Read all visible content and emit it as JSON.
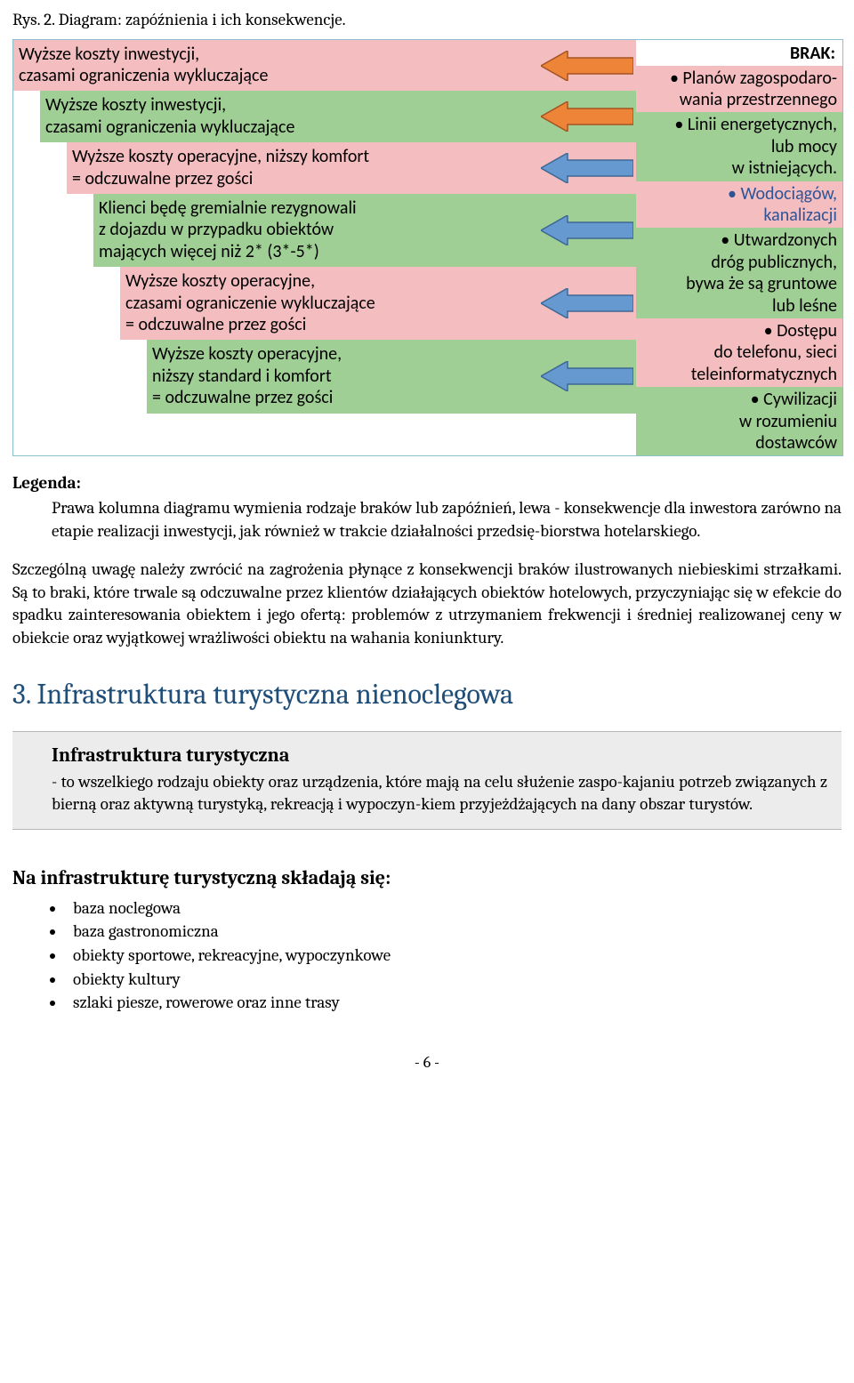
{
  "caption": "Rys. 2. Diagram: zapóźnienia i ich konsekwencje.",
  "colors": {
    "pink": "#f4bdc0",
    "green": "#a0cf95",
    "arrow_orange_fill": "#ee8437",
    "arrow_orange_stroke": "#a45523",
    "arrow_blue_fill": "#6699d0",
    "arrow_blue_stroke": "#3e6895",
    "heading_blue": "#1f4e79",
    "box_gray": "#ececec",
    "blue_text": "#2f5496"
  },
  "diagram": {
    "brak_label": "BRAK:",
    "left_rows": [
      {
        "indent": 0,
        "bg": "pink",
        "arrow": "orange",
        "text": "Wyższe koszty inwestycji,\nczasami ograniczenia wykluczające"
      },
      {
        "indent": 30,
        "bg": "green",
        "arrow": "orange",
        "text": "Wyższe koszty inwestycji,\nczasami ograniczenia wykluczające"
      },
      {
        "indent": 60,
        "bg": "pink",
        "arrow": "blue",
        "text": "Wyższe koszty operacyjne, niższy komfort\n= odczuwalne przez gości"
      },
      {
        "indent": 90,
        "bg": "green",
        "arrow": "blue",
        "text": "Klienci będę gremialnie rezygnowali\nz dojazdu w przypadku obiektów\nmających więcej niż 2* (3*-5*)"
      },
      {
        "indent": 120,
        "bg": "pink",
        "arrow": "blue",
        "text": "Wyższe koszty operacyjne,\nczasami ograniczenie wykluczające\n= odczuwalne przez gości"
      },
      {
        "indent": 150,
        "bg": "green",
        "arrow": "blue",
        "text": "Wyższe koszty operacyjne,\nniższy standard i komfort\n= odczuwalne przez gości"
      }
    ],
    "right_rows": [
      {
        "bg": "pink",
        "blue_text": false,
        "text": "• Planów  zagospodaro-\nwania przestrzennego"
      },
      {
        "bg": "green",
        "blue_text": false,
        "text": "• Linii energetycznych,\nlub mocy\nw istniejących."
      },
      {
        "bg": "pink",
        "blue_text": true,
        "text": "• Wodociągów,\nkanalizacji"
      },
      {
        "bg": "green",
        "blue_text": false,
        "text": "• Utwardzonych\ndróg publicznych,\nbywa że są gruntowe\nlub leśne"
      },
      {
        "bg": "pink",
        "blue_text": false,
        "text": "• Dostępu\ndo telefonu, sieci\nteleinformatycznych"
      },
      {
        "bg": "green",
        "blue_text": false,
        "text": "• Cywilizacji\nw rozumieniu\ndostawców"
      }
    ]
  },
  "legend": {
    "title": "Legenda:",
    "body": "Prawa kolumna diagramu wymienia rodzaje braków lub zapóźnień, lewa - konsekwencje dla inwestora zarówno na etapie realizacji inwestycji, jak również w trakcie działalności przedsię-biorstwa hotelarskiego."
  },
  "para": "Szczególną uwagę należy zwrócić na zagrożenia płynące z konsekwencji braków ilustrowanych niebieskimi strzałkami. Są to braki, które trwale są odczuwalne przez klientów działających obiektów hotelowych, przyczyniając się w efekcie do spadku zainteresowania obiektem i jego ofertą: problemów z utrzymaniem frekwencji i średniej realizowanej ceny w obiekcie oraz wyjątkowej wrażliwości obiektu na wahania koniunktury.",
  "section_heading": "3.   Infrastruktura turystyczna nienoclegowa",
  "def_box": {
    "title": "Infrastruktura turystyczna",
    "body": "- to wszelkiego rodzaju obiekty oraz urządzenia, które mają na celu służenie zaspo-kajaniu potrzeb związanych z bierną oraz aktywną turystyką, rekreacją i wypoczyn-kiem przyjeżdżających na dany obszar turystów."
  },
  "sub_heading": "Na infrastrukturę turystyczną składają się:",
  "bullets": [
    "baza noclegowa",
    "baza gastronomiczna",
    "obiekty sportowe, rekreacyjne, wypoczynkowe",
    "obiekty kultury",
    "szlaki piesze, rowerowe oraz inne trasy"
  ],
  "page_number": "- 6 -"
}
